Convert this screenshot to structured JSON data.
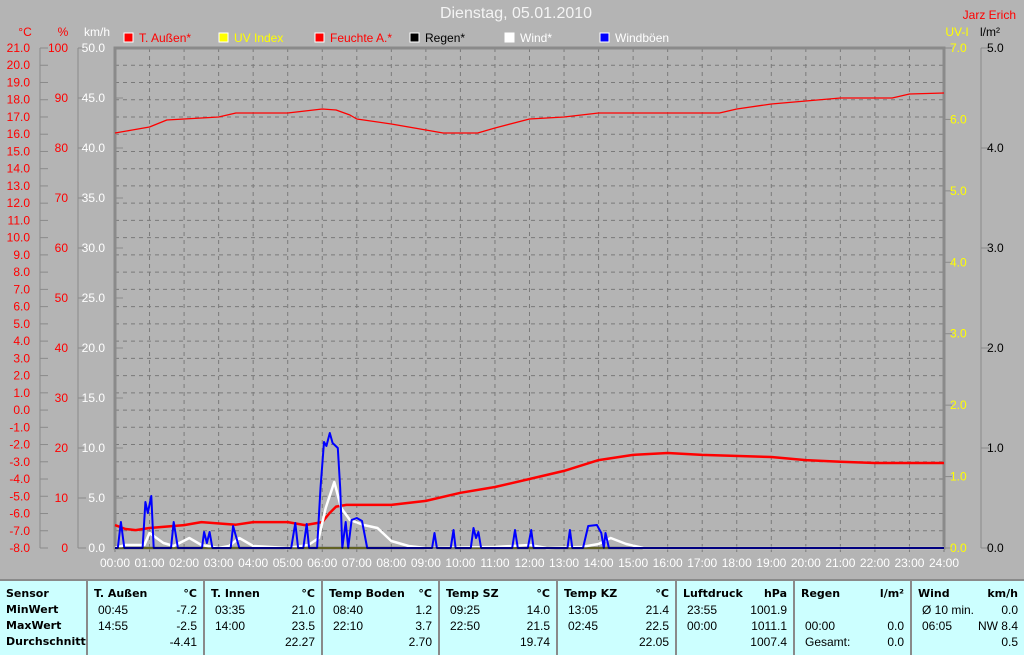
{
  "header": {
    "title": "Dienstag, 05.01.2010",
    "author": "Jarz Erich"
  },
  "chart_data": {
    "type": "line",
    "title": "Dienstag, 05.01.2010",
    "grid": true,
    "legend_placement": "top",
    "legend": [
      {
        "name": "T. Außen*",
        "color": "#ff0000",
        "label_color": "#ff0000"
      },
      {
        "name": "UV Index",
        "color": "#ffff00",
        "label_color": "#ffff00"
      },
      {
        "name": "Feuchte A.*",
        "color": "#ff0000",
        "label_color": "#ff0000"
      },
      {
        "name": "Regen*",
        "color": "#000000",
        "label_color": "#000000"
      },
      {
        "name": "Wind*",
        "color": "#ffffff",
        "label_color": "#ffffff"
      },
      {
        "name": "Windböen",
        "color": "#0000ff",
        "label_color": "#ffffff"
      }
    ],
    "x_ticks": [
      "00:00",
      "01:00",
      "02:00",
      "03:00",
      "04:00",
      "05:00",
      "06:00",
      "07:00",
      "08:00",
      "09:00",
      "10:00",
      "11:00",
      "12:00",
      "13:00",
      "14:00",
      "15:00",
      "16:00",
      "17:00",
      "18:00",
      "19:00",
      "20:00",
      "21:00",
      "22:00",
      "23:00",
      "24:00"
    ],
    "xlim": [
      0,
      24
    ],
    "axes": {
      "temp": {
        "label": "°C",
        "range": [
          -8,
          21
        ],
        "step": 1,
        "decimals": 1,
        "color": "#ff0000"
      },
      "humidity": {
        "label": "%",
        "range": [
          0,
          100
        ],
        "step": 10,
        "decimals": 0,
        "color": "#ff0000"
      },
      "wind": {
        "label": "km/h",
        "range": [
          0,
          50
        ],
        "step": 5,
        "decimals": 1,
        "color": "#ffffff"
      },
      "uv": {
        "label": "UV-I",
        "range": [
          0,
          7
        ],
        "step": 1,
        "decimals": 1,
        "color": "#ffff00"
      },
      "rain": {
        "label": "l/m²",
        "range": [
          0,
          5
        ],
        "step": 1,
        "decimals": 1,
        "color": "#000000"
      }
    },
    "series": [
      {
        "name": "Feuchte A.*",
        "axis": "humidity",
        "color": "#ff0000",
        "width": 1.3,
        "points": [
          [
            0,
            83
          ],
          [
            0.5,
            83.6
          ],
          [
            1,
            84.2
          ],
          [
            1.5,
            85.6
          ],
          [
            2,
            85.8
          ],
          [
            3,
            86.2
          ],
          [
            3.5,
            87
          ],
          [
            5,
            87
          ],
          [
            6,
            87.8
          ],
          [
            6.4,
            87.6
          ],
          [
            6.8,
            86.6
          ],
          [
            7,
            85.8
          ],
          [
            8,
            84.8
          ],
          [
            9,
            83.6
          ],
          [
            9.5,
            83
          ],
          [
            10.5,
            83
          ],
          [
            11,
            84
          ],
          [
            12,
            85.8
          ],
          [
            13,
            86.2
          ],
          [
            14,
            87
          ],
          [
            16,
            87
          ],
          [
            17.5,
            87
          ],
          [
            18,
            87.8
          ],
          [
            19,
            88.8
          ],
          [
            20,
            89.4
          ],
          [
            21,
            90
          ],
          [
            22.5,
            90
          ],
          [
            23,
            90.8
          ],
          [
            24,
            91
          ]
        ]
      },
      {
        "name": "T. Außen*",
        "axis": "temp",
        "color": "#ff0000",
        "width": 2.5,
        "points": [
          [
            0,
            -6.67
          ],
          [
            0.3,
            -6.9
          ],
          [
            0.6,
            -6.96
          ],
          [
            1,
            -6.84
          ],
          [
            2,
            -6.67
          ],
          [
            2.5,
            -6.5
          ],
          [
            3.5,
            -6.65
          ],
          [
            4,
            -6.5
          ],
          [
            5,
            -6.5
          ],
          [
            5.5,
            -6.67
          ],
          [
            6,
            -6.5
          ],
          [
            6.2,
            -6.0
          ],
          [
            6.4,
            -5.6
          ],
          [
            6.7,
            -5.5
          ],
          [
            8,
            -5.5
          ],
          [
            9,
            -5.27
          ],
          [
            10,
            -4.8
          ],
          [
            11,
            -4.46
          ],
          [
            12,
            -4.0
          ],
          [
            13,
            -3.53
          ],
          [
            14,
            -2.9
          ],
          [
            15,
            -2.6
          ],
          [
            16,
            -2.49
          ],
          [
            17,
            -2.6
          ],
          [
            19,
            -2.72
          ],
          [
            20,
            -2.9
          ],
          [
            21,
            -3.0
          ],
          [
            22,
            -3.07
          ],
          [
            24,
            -3.07
          ]
        ]
      },
      {
        "name": "UV Index",
        "axis": "uv",
        "color": "#ffff00",
        "width": 1.5,
        "points": [
          [
            0,
            0
          ],
          [
            24,
            0
          ]
        ]
      },
      {
        "name": "Wind*",
        "axis": "wind",
        "color": "#ffffff",
        "width": 2.5,
        "points": [
          [
            0,
            0
          ],
          [
            0.3,
            0.3
          ],
          [
            0.85,
            0.3
          ],
          [
            1,
            1.5
          ],
          [
            1.4,
            0.5
          ],
          [
            1.7,
            0.2
          ],
          [
            2.15,
            1.0
          ],
          [
            2.5,
            0.3
          ],
          [
            3,
            0
          ],
          [
            3.3,
            0.2
          ],
          [
            3.6,
            1.0
          ],
          [
            4,
            0.2
          ],
          [
            5,
            0
          ],
          [
            5.6,
            0.3
          ],
          [
            5.9,
            1.0
          ],
          [
            6.1,
            4.0
          ],
          [
            6.35,
            6.6
          ],
          [
            6.55,
            4.0
          ],
          [
            6.8,
            2.8
          ],
          [
            7.2,
            2.3
          ],
          [
            7.6,
            2.0
          ],
          [
            8,
            0.7
          ],
          [
            8.5,
            0.2
          ],
          [
            9,
            0
          ],
          [
            11,
            0.1
          ],
          [
            12,
            0.3
          ],
          [
            12.5,
            0
          ],
          [
            13.5,
            0.1
          ],
          [
            14,
            0.4
          ],
          [
            14.35,
            1.0
          ],
          [
            14.8,
            0.4
          ],
          [
            15.3,
            0
          ],
          [
            24,
            0
          ]
        ]
      },
      {
        "name": "Windböen",
        "axis": "wind",
        "color": "#0000ff",
        "width": 2,
        "points": [
          [
            0,
            0
          ],
          [
            0.08,
            0
          ],
          [
            0.17,
            2.6
          ],
          [
            0.27,
            0
          ],
          [
            0.8,
            0
          ],
          [
            0.88,
            4.6
          ],
          [
            0.95,
            3.5
          ],
          [
            1.05,
            5.2
          ],
          [
            1.12,
            0
          ],
          [
            1.62,
            0
          ],
          [
            1.7,
            2.6
          ],
          [
            1.82,
            0
          ],
          [
            2.52,
            0
          ],
          [
            2.58,
            1.6
          ],
          [
            2.66,
            0.5
          ],
          [
            2.74,
            1.6
          ],
          [
            2.82,
            0
          ],
          [
            3.35,
            0
          ],
          [
            3.42,
            2.2
          ],
          [
            3.5,
            1.2
          ],
          [
            3.6,
            0
          ],
          [
            5.1,
            0
          ],
          [
            5.22,
            2.5
          ],
          [
            5.3,
            0
          ],
          [
            5.45,
            0
          ],
          [
            5.55,
            2.4
          ],
          [
            5.62,
            0
          ],
          [
            5.85,
            0
          ],
          [
            5.95,
            6.0
          ],
          [
            6.05,
            10.6
          ],
          [
            6.12,
            10.2
          ],
          [
            6.22,
            11.5
          ],
          [
            6.3,
            10.5
          ],
          [
            6.45,
            10.0
          ],
          [
            6.52,
            6.0
          ],
          [
            6.58,
            0
          ],
          [
            6.68,
            2.6
          ],
          [
            6.75,
            0
          ],
          [
            6.85,
            2.8
          ],
          [
            7.0,
            3.0
          ],
          [
            7.15,
            2.7
          ],
          [
            7.3,
            0
          ],
          [
            9.18,
            0
          ],
          [
            9.25,
            1.5
          ],
          [
            9.32,
            0
          ],
          [
            9.72,
            0
          ],
          [
            9.8,
            1.8
          ],
          [
            9.86,
            0
          ],
          [
            10.3,
            0
          ],
          [
            10.38,
            2.0
          ],
          [
            10.45,
            1.0
          ],
          [
            10.52,
            1.6
          ],
          [
            10.6,
            0
          ],
          [
            11.5,
            0
          ],
          [
            11.58,
            1.8
          ],
          [
            11.66,
            0
          ],
          [
            11.95,
            0
          ],
          [
            12.05,
            1.8
          ],
          [
            12.12,
            0
          ],
          [
            13.1,
            0
          ],
          [
            13.17,
            1.8
          ],
          [
            13.24,
            0
          ],
          [
            13.55,
            0
          ],
          [
            13.7,
            2.2
          ],
          [
            13.95,
            2.3
          ],
          [
            14.08,
            1.5
          ],
          [
            14.15,
            0
          ],
          [
            14.2,
            1.5
          ],
          [
            14.3,
            0
          ],
          [
            24,
            0
          ]
        ]
      },
      {
        "name": "Regen*",
        "axis": "rain",
        "color": "#000000",
        "width": 1,
        "points": [
          [
            0,
            0
          ],
          [
            24,
            0
          ]
        ]
      }
    ]
  },
  "table": {
    "columns": [
      {
        "header": "Sensor",
        "unit": "",
        "rows": [
          [
            "MinWert",
            ""
          ],
          [
            "MaxWert",
            ""
          ],
          [
            "Durchschnitt",
            ""
          ]
        ],
        "label_col": true
      },
      {
        "header": "T. Außen",
        "unit": "°C",
        "rows": [
          [
            "00:45",
            "-7.2"
          ],
          [
            "14:55",
            "-2.5"
          ],
          [
            "",
            "-4.41"
          ]
        ]
      },
      {
        "header": "T. Innen",
        "unit": "°C",
        "rows": [
          [
            "03:35",
            "21.0"
          ],
          [
            "14:00",
            "23.5"
          ],
          [
            "",
            "22.27"
          ]
        ]
      },
      {
        "header": "Temp Boden",
        "unit": "°C",
        "rows": [
          [
            "08:40",
            "1.2"
          ],
          [
            "22:10",
            "3.7"
          ],
          [
            "",
            "2.70"
          ]
        ]
      },
      {
        "header": "Temp SZ",
        "unit": "°C",
        "rows": [
          [
            "09:25",
            "14.0"
          ],
          [
            "22:50",
            "21.5"
          ],
          [
            "",
            "19.74"
          ]
        ]
      },
      {
        "header": "Temp KZ",
        "unit": "°C",
        "rows": [
          [
            "13:05",
            "21.4"
          ],
          [
            "02:45",
            "22.5"
          ],
          [
            "",
            "22.05"
          ]
        ]
      },
      {
        "header": "Luftdruck",
        "unit": "hPa",
        "rows": [
          [
            "23:55",
            "1001.9"
          ],
          [
            "00:00",
            "1011.1"
          ],
          [
            "",
            "1007.4"
          ]
        ]
      },
      {
        "header": "Regen",
        "unit": "l/m²",
        "rows": [
          [
            "",
            ""
          ],
          [
            "00:00",
            "0.0"
          ],
          [
            "Gesamt:",
            "0.0"
          ]
        ]
      },
      {
        "header": "Wind",
        "unit": "km/h",
        "rows": [
          [
            "Ø 10 min.",
            "0.0"
          ],
          [
            "06:05",
            "NW 8.4"
          ],
          [
            "",
            "0.5"
          ]
        ]
      }
    ]
  }
}
